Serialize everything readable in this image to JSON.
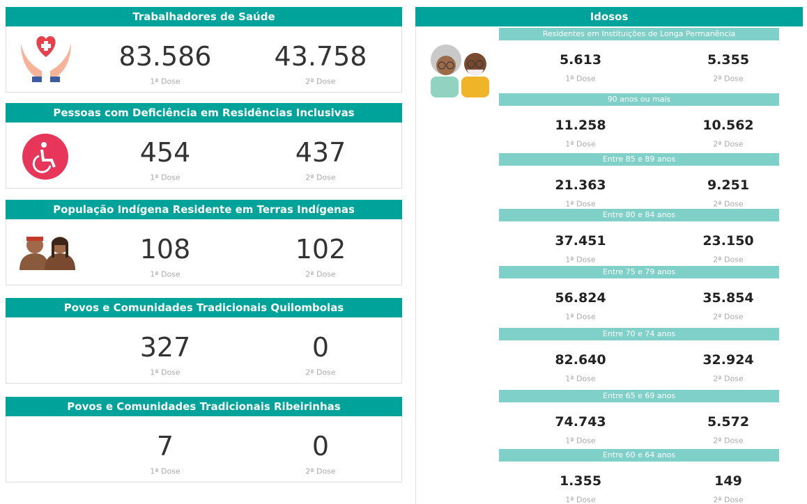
{
  "left_cards": [
    {
      "title": "Trabalhadores de Saúde",
      "dose1": "83.586",
      "dose1_label": "1ª Dose",
      "dose2": "43.758",
      "dose2_label": "2ª Dose"
    },
    {
      "title": "Pessoas com Deficiência em Residências Inclusivas",
      "dose1": "454",
      "dose1_label": "1ª Dose",
      "dose2": "437",
      "dose2_label": "2ª Dose"
    },
    {
      "title": "População Indígena Residente em Terras Indígenas",
      "dose1": "108",
      "dose1_label": "1ª Dose",
      "dose2": "102",
      "dose2_label": "2ª Dose"
    },
    {
      "title": "Povos e Comunidades Tradicionais Quilombolas",
      "dose1": "327",
      "dose1_label": "1ª Dose",
      "dose2": "0",
      "dose2_label": "2ª Dose"
    },
    {
      "title": "Povos e Comunidades Tradicionais Ribeirinhas",
      "dose1": "7",
      "dose1_label": "1ª Dose",
      "dose2": "0",
      "dose2_label": "2ª Dose"
    }
  ],
  "elderly": {
    "title": "Idosos",
    "groups": [
      {
        "title": "Residentes em Instituições de Longa Permanência",
        "dose1": "5.613",
        "dose1_label": "1ª Dose",
        "dose2": "5.355",
        "dose2_label": "2ª Dose"
      },
      {
        "title": "90 anos ou mais",
        "dose1": "11.258",
        "dose1_label": "1ª Dose",
        "dose2": "10.562",
        "dose2_label": "2ª Dose"
      },
      {
        "title": "Entre 85 e 89 anos",
        "dose1": "21.363",
        "dose1_label": "1ª Dose",
        "dose2": "9.251",
        "dose2_label": "2ª Dose"
      },
      {
        "title": "Entre 80 e 84 anos",
        "dose1": "37.451",
        "dose1_label": "1ª Dose",
        "dose2": "23.150",
        "dose2_label": "2ª Dose"
      },
      {
        "title": "Entre 75 e 79 anos",
        "dose1": "56.824",
        "dose1_label": "1ª Dose",
        "dose2": "35.854",
        "dose2_label": "2ª Dose"
      },
      {
        "title": "Entre 70 e 74 anos",
        "dose1": "82.640",
        "dose1_label": "1ª Dose",
        "dose2": "32.924",
        "dose2_label": "2ª Dose"
      },
      {
        "title": "Entre 65 e 69 anos",
        "dose1": "74.743",
        "dose1_label": "1ª Dose",
        "dose2": "5.572",
        "dose2_label": "2ª Dose"
      },
      {
        "title": "Entre 60 e 64 anos",
        "dose1": "1.355",
        "dose1_label": "1ª Dose",
        "dose2": "149",
        "dose2_label": "2ª Dose"
      }
    ]
  }
}
